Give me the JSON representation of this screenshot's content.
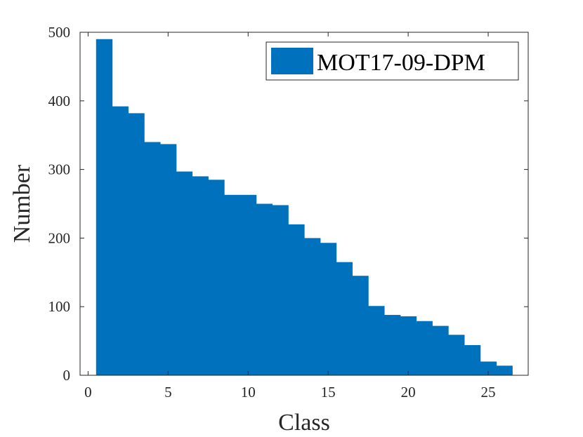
{
  "chart_data": {
    "type": "bar",
    "categories": [
      1,
      2,
      3,
      4,
      5,
      6,
      7,
      8,
      9,
      10,
      11,
      12,
      13,
      14,
      15,
      16,
      17,
      18,
      19,
      20,
      21,
      22,
      23,
      24,
      25,
      26
    ],
    "series": [
      {
        "name": "MOT17-09-DPM",
        "values": [
          490,
          392,
          382,
          340,
          337,
          297,
          290,
          285,
          263,
          263,
          250,
          248,
          220,
          200,
          193,
          165,
          145,
          101,
          88,
          86,
          79,
          72,
          59,
          44,
          20,
          14
        ]
      }
    ],
    "xlabel": "Class",
    "ylabel": "Number",
    "xlim": [
      -0.5,
      27.5
    ],
    "ylim": [
      0,
      500
    ],
    "xticks": [
      0,
      5,
      10,
      15,
      20,
      25
    ],
    "yticks": [
      0,
      100,
      200,
      300,
      400,
      500
    ],
    "grid": false,
    "legend_position": "top-right",
    "bar_color": "#0072BD"
  }
}
